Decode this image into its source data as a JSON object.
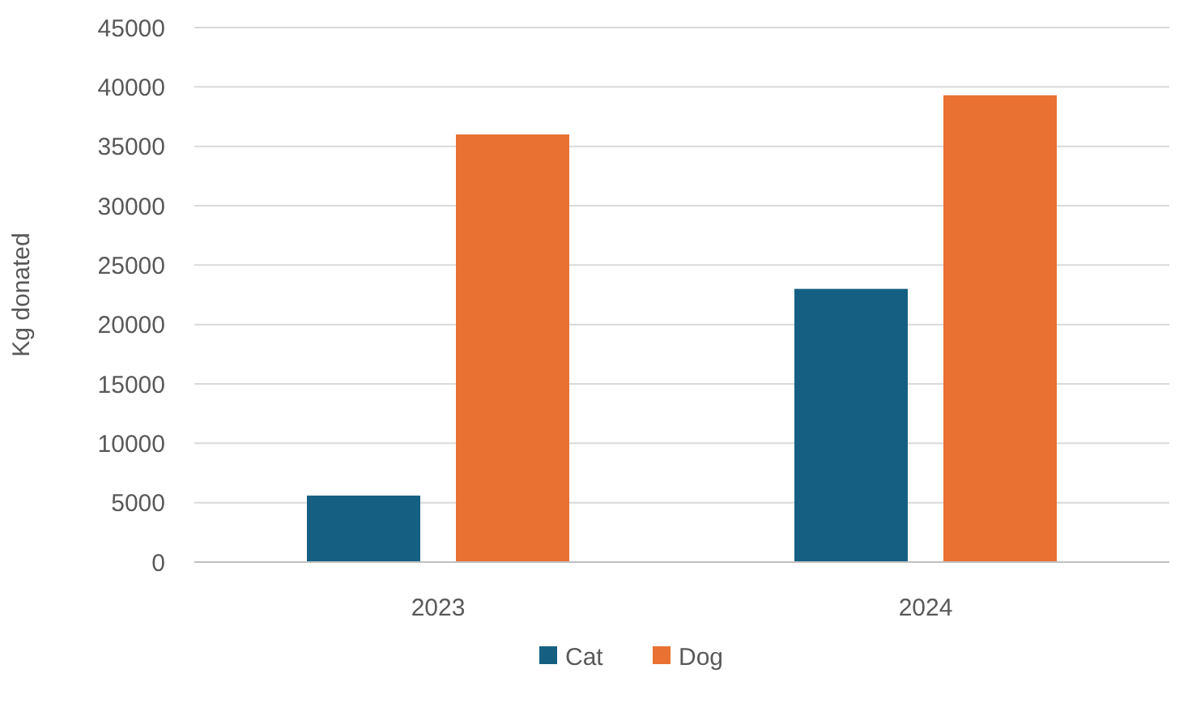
{
  "chart_data": {
    "type": "bar",
    "ylabel": "Kg donated",
    "categories": [
      "2023",
      "2024"
    ],
    "series": [
      {
        "name": "Cat",
        "color": "#156082",
        "values": [
          5600,
          23000
        ]
      },
      {
        "name": "Dog",
        "color": "#e97132",
        "values": [
          36000,
          39300
        ]
      }
    ],
    "ylim": [
      0,
      45000
    ],
    "yticks": [
      0,
      5000,
      10000,
      15000,
      20000,
      25000,
      30000,
      35000,
      40000,
      45000
    ],
    "grid": "y",
    "legend": "bottom"
  }
}
